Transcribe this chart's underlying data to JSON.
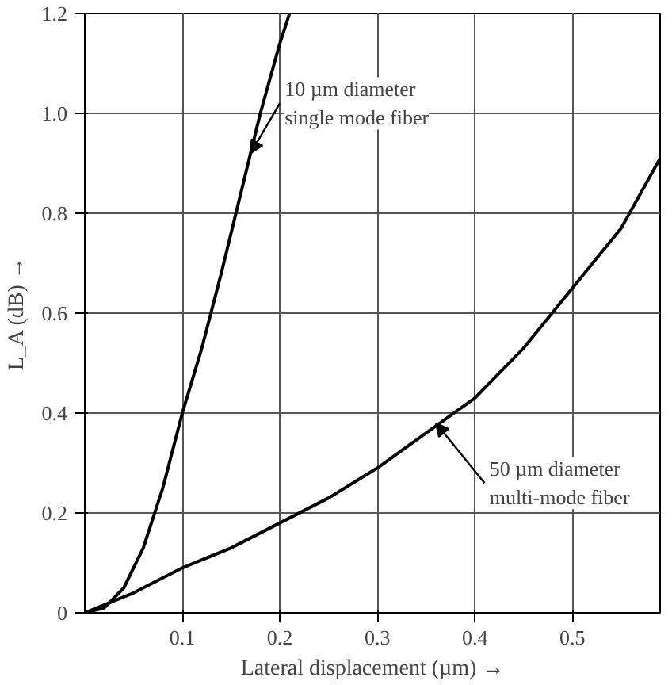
{
  "chart_data": {
    "type": "line",
    "xlabel": "Lateral displacement (µm) →",
    "ylabel": "L_A (dB) →",
    "xlim": [
      0,
      0.59
    ],
    "ylim": [
      0,
      1.2
    ],
    "xticks": [
      0.1,
      0.2,
      0.3,
      0.4,
      0.5
    ],
    "yticks": [
      0,
      0.2,
      0.4,
      0.6,
      0.8,
      {
        "value": 1.0,
        "label": "1.0"
      },
      1.2
    ],
    "grid": true,
    "series": [
      {
        "color": "#000000",
        "x": [
          0,
          0.02,
          0.04,
          0.06,
          0.08,
          0.1,
          0.12,
          0.14,
          0.16,
          0.18,
          0.2,
          0.21
        ],
        "values": [
          0,
          0.01,
          0.05,
          0.13,
          0.25,
          0.4,
          0.53,
          0.68,
          0.84,
          1.0,
          1.14,
          1.2
        ]
      },
      {
        "color": "#000000",
        "x": [
          0,
          0.05,
          0.1,
          0.15,
          0.2,
          0.25,
          0.3,
          0.35,
          0.4,
          0.45,
          0.5,
          0.55,
          0.59
        ],
        "values": [
          0,
          0.04,
          0.09,
          0.13,
          0.18,
          0.23,
          0.29,
          0.36,
          0.43,
          0.53,
          0.65,
          0.77,
          0.91
        ]
      }
    ],
    "annotations": [
      {
        "text": "10 µm diameter\nsingle mode fiber",
        "x": 0.17,
        "y": 0.92
      },
      {
        "text": "50 µm diameter\nmulti-mode fiber",
        "x": 0.36,
        "y": 0.38
      }
    ]
  }
}
